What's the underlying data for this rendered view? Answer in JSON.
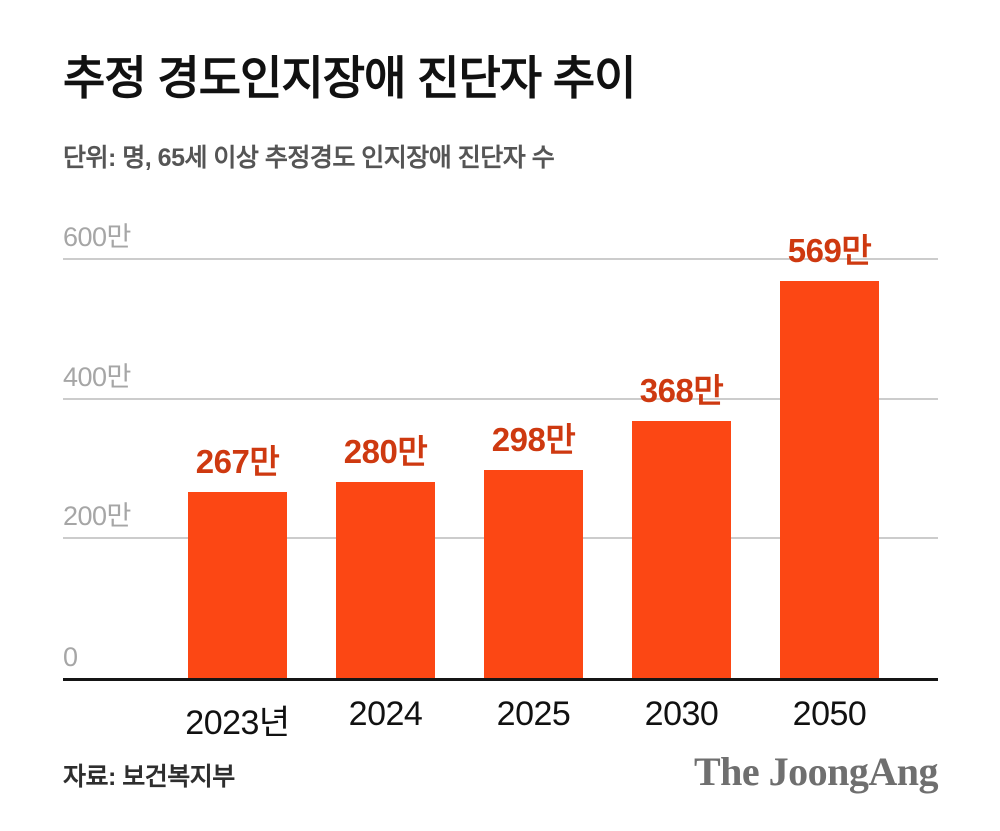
{
  "header": {
    "title": "추정 경도인지장애 진단자 추이",
    "subtitle": "단위: 명, 65세 이상 추정경도 인지장애 진단자 수"
  },
  "chart_data": {
    "type": "bar",
    "categories": [
      "2023년",
      "2024",
      "2025",
      "2030",
      "2050"
    ],
    "values": [
      267,
      280,
      298,
      368,
      569
    ],
    "value_labels": [
      "267만",
      "280만",
      "298만",
      "368만",
      "569만"
    ],
    "y_ticks": [
      {
        "value": 0,
        "label": "0"
      },
      {
        "value": 200,
        "label": "200만"
      },
      {
        "value": 400,
        "label": "400만"
      },
      {
        "value": 600,
        "label": "600만"
      }
    ],
    "ylim": [
      0,
      600
    ],
    "grid": true,
    "legend": "none",
    "title": "추정 경도인지장애 진단자 추이",
    "xlabel": "",
    "ylabel": "단위: 명 (65세 이상 추정경도 인지장애 진단자 수)",
    "colors": {
      "bar": "#fc4714",
      "value_label": "#ce3910",
      "gridline": "#cccccc",
      "axis_tick": "#a6a6a6",
      "baseline": "#151515"
    }
  },
  "footer": {
    "source": "자료: 보건복지부",
    "logo": "The JoongAng"
  }
}
